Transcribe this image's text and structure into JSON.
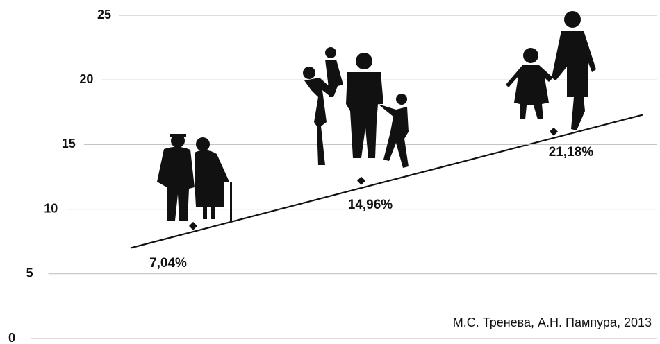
{
  "chart_data": {
    "type": "scatter",
    "categories": [
      null,
      null,
      null
    ],
    "values": [
      8.7,
      12.2,
      16.0
    ],
    "color": "#111111",
    "annotations": [
      "7,04%",
      "14,96%",
      "21,18%"
    ],
    "trendline": {
      "values": [
        7.0,
        17.3
      ]
    },
    "ylim": [
      0,
      25
    ],
    "yticks": [
      0,
      5,
      10,
      15,
      20,
      25
    ],
    "grid": true,
    "source": "М.С. Тренева, А.Н. Пампура, 2013"
  }
}
